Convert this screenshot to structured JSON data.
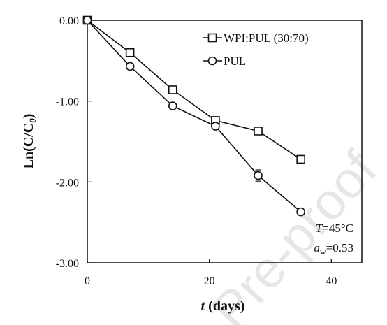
{
  "chart_data": {
    "type": "line",
    "xlabel_prefix": "t",
    "xlabel_suffix": " (days)",
    "ylabel": "Ln(C/C",
    "ylabel_sub": "0",
    "ylabel_close": ")",
    "xlim": [
      0,
      45
    ],
    "ylim": [
      -3.0,
      0.0
    ],
    "xticks": [
      0,
      20,
      40
    ],
    "xtick_labels": [
      "0",
      "20",
      "40"
    ],
    "yticks": [
      0,
      -1,
      -2,
      -3
    ],
    "ytick_labels": [
      "0.00",
      "-1.00",
      "-2.00",
      "-3.00"
    ],
    "grid": false,
    "legend_position": "top-right",
    "series": [
      {
        "name": "WPI:PUL (30:70)",
        "marker": "square",
        "x": [
          0,
          7,
          14,
          21,
          28,
          35
        ],
        "y": [
          0.0,
          -0.4,
          -0.86,
          -1.24,
          -1.37,
          -1.72
        ],
        "err": [
          0.01,
          0.02,
          0.03,
          0.03,
          0.03,
          0.03
        ]
      },
      {
        "name": "PUL",
        "marker": "circle",
        "x": [
          0,
          7,
          14,
          21,
          28,
          35
        ],
        "y": [
          0.0,
          -0.57,
          -1.06,
          -1.31,
          -1.92,
          -2.37
        ],
        "err": [
          0.01,
          0.02,
          0.02,
          0.03,
          0.07,
          0.02
        ]
      }
    ],
    "annotations": {
      "temp_var": "T",
      "temp_value": "=45°C",
      "aw_var": "a",
      "aw_sub": "w",
      "aw_value": "=0.53"
    }
  },
  "watermark": "Pre-proof"
}
